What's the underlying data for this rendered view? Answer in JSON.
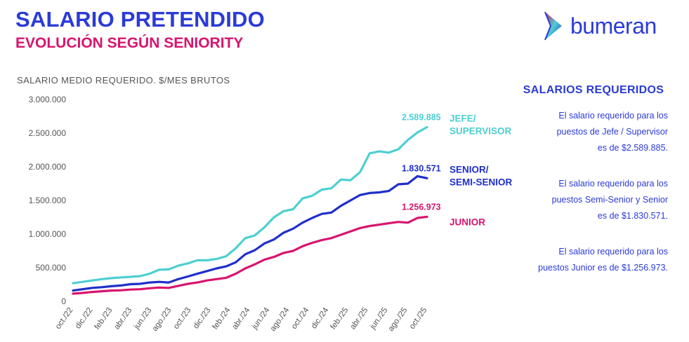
{
  "header": {
    "title": "SALARIO PRETENDIDO",
    "subtitle": "EVOLUCIÓN SEGÚN SENIORITY"
  },
  "logo": {
    "text": "bumeran",
    "icon": "bumeran-arrow-icon"
  },
  "colors": {
    "brand_blue": "#2b3bd6",
    "magenta": "#d8146e",
    "teal": "#4dcfd1",
    "navy": "#1f2fcb",
    "axis_text": "#555555"
  },
  "chart_data": {
    "type": "line",
    "title": "SALARIO MEDIO REQUERIDO. $/MES BRUTOS",
    "xlabel": "",
    "ylabel": "",
    "ylim": [
      0,
      3000000
    ],
    "yticks": [
      0,
      500000,
      1000000,
      1500000,
      2000000,
      2500000,
      3000000
    ],
    "ytick_labels": [
      "0",
      "500.000",
      "1.000.000",
      "1.500.000",
      "2.000.000",
      "2.500.000",
      "3.000.000"
    ],
    "x_tick_labels": [
      "oct./22",
      "dic./22",
      "feb./23",
      "abr./23",
      "jun./23",
      "ago./23",
      "oct./23",
      "dic./23",
      "feb./24",
      "abr./24",
      "jun./24",
      "ago./24",
      "oct./24",
      "dic./24",
      "feb./25",
      "abr./25",
      "jun./25",
      "ago./25",
      "oct./25"
    ],
    "series": [
      {
        "name": "JEFE/ SUPERVISOR",
        "name_lines": [
          "JEFE/",
          "SUPERVISOR"
        ],
        "color": "#4dcfd1",
        "end_label": "2.589.885",
        "values": [
          270000,
          290000,
          310000,
          330000,
          345000,
          355000,
          365000,
          375000,
          410000,
          470000,
          475000,
          530000,
          565000,
          610000,
          610000,
          630000,
          670000,
          790000,
          940000,
          980000,
          1100000,
          1250000,
          1340000,
          1370000,
          1530000,
          1570000,
          1660000,
          1680000,
          1810000,
          1800000,
          1920000,
          2200000,
          2230000,
          2210000,
          2260000,
          2400000,
          2510000,
          2589885
        ]
      },
      {
        "name": "SENIOR/ SEMI-SENIOR",
        "name_lines": [
          "SENIOR/",
          "SEMI-SENIOR"
        ],
        "color": "#1f2fcb",
        "end_label": "1.830.571",
        "values": [
          160000,
          180000,
          200000,
          210000,
          225000,
          235000,
          255000,
          260000,
          280000,
          290000,
          280000,
          330000,
          370000,
          410000,
          450000,
          490000,
          520000,
          580000,
          700000,
          760000,
          860000,
          920000,
          1020000,
          1080000,
          1170000,
          1240000,
          1300000,
          1320000,
          1420000,
          1500000,
          1580000,
          1610000,
          1620000,
          1640000,
          1740000,
          1750000,
          1860000,
          1830571
        ]
      },
      {
        "name": "JUNIOR",
        "name_lines": [
          "JUNIOR"
        ],
        "color": "#d8146e",
        "end_label": "1.256.973",
        "values": [
          115000,
          125000,
          140000,
          150000,
          160000,
          165000,
          175000,
          180000,
          195000,
          205000,
          200000,
          230000,
          260000,
          280000,
          310000,
          330000,
          350000,
          410000,
          490000,
          550000,
          620000,
          660000,
          720000,
          750000,
          820000,
          870000,
          910000,
          940000,
          990000,
          1040000,
          1090000,
          1120000,
          1140000,
          1160000,
          1180000,
          1170000,
          1240000,
          1256973
        ]
      }
    ]
  },
  "panel": {
    "title": "SALARIOS REQUERIDOS",
    "paragraphs": [
      [
        "El salario requerido para los",
        "puestos de Jefe / Supervisor",
        "es de $2.589.885."
      ],
      [
        "El salario requerido para los",
        "puestos Semi-Senior y Senior",
        "es de $1.830.571."
      ],
      [
        "El salario requerido para los",
        "puestos Junior es de $1.256.973."
      ]
    ]
  }
}
